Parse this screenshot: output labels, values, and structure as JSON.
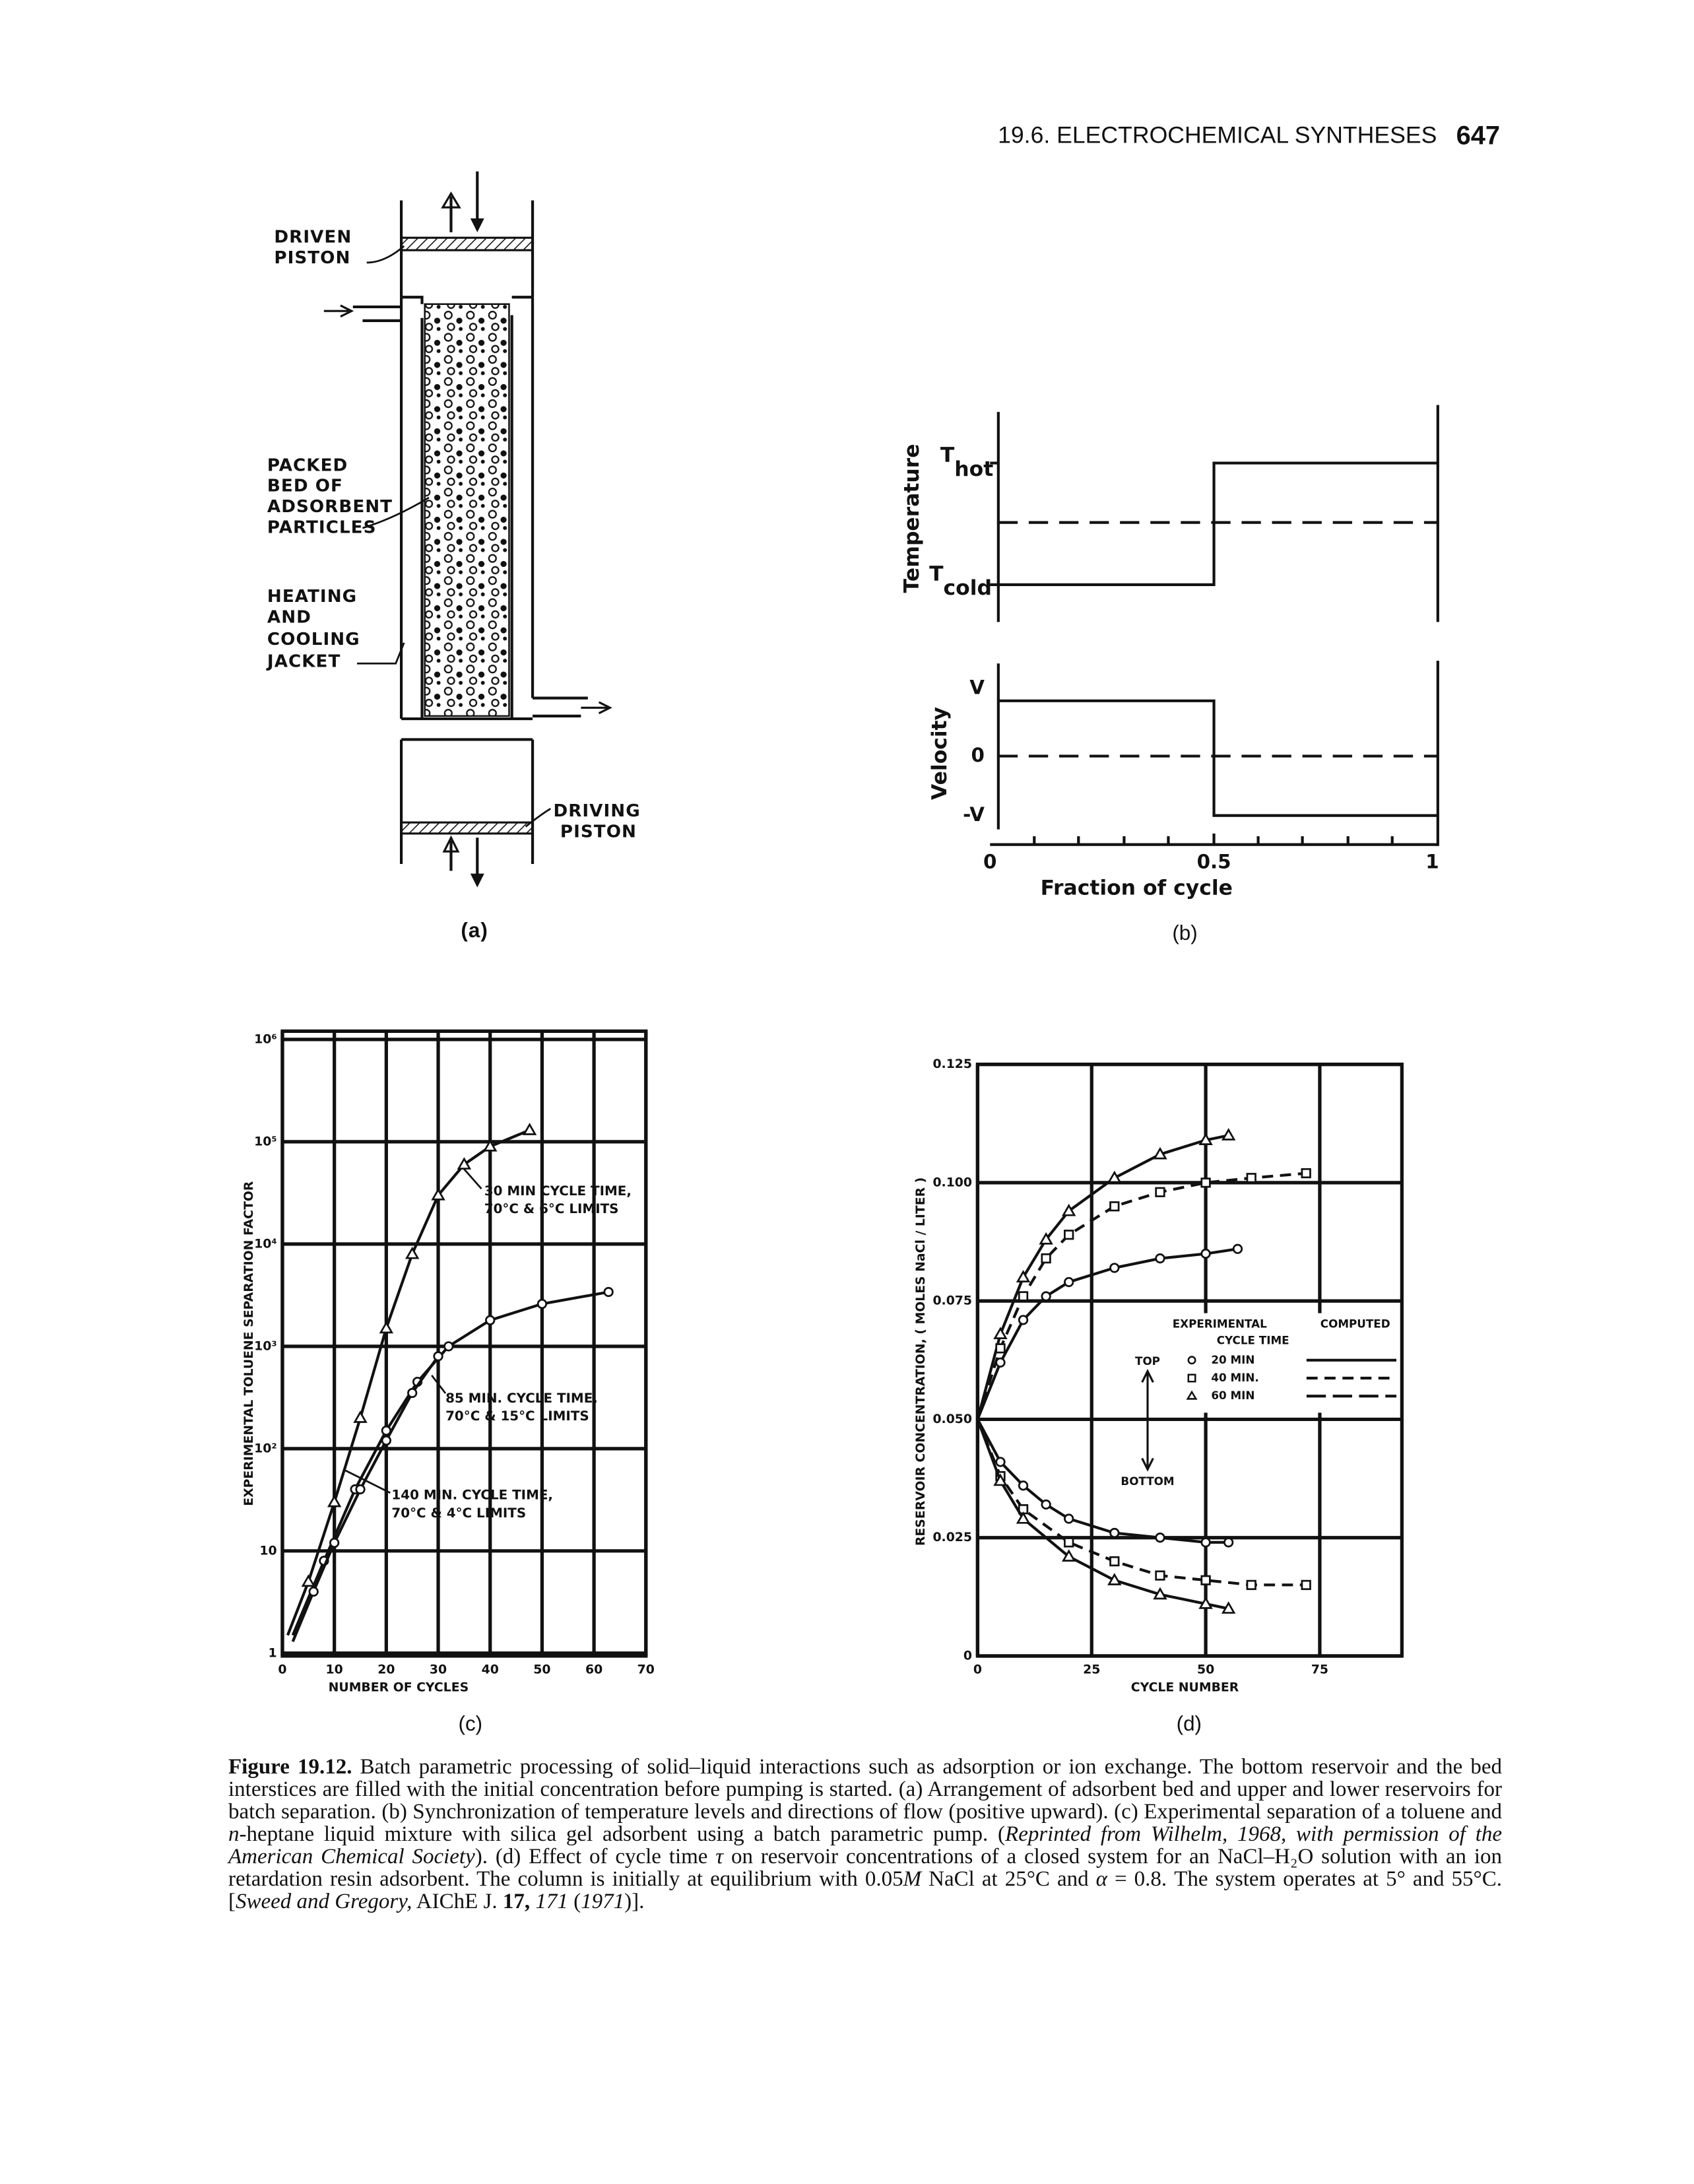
{
  "header": {
    "section": "19.6. ELECTROCHEMICAL SYNTHESES",
    "page": "647"
  },
  "panel_a": {
    "driven_piston": [
      "DRIVEN",
      "PISTON"
    ],
    "packed_bed": [
      "PACKED",
      "BED OF",
      "ADSORBENT",
      "PARTICLES"
    ],
    "jacket": [
      "HEATING",
      "AND",
      "COOLING",
      "JACKET"
    ],
    "driving_piston": [
      "DRIVING",
      "PISTON"
    ],
    "label": "(a)"
  },
  "panel_b": {
    "temperature_label": "Temperature",
    "velocity_label": "Velocity",
    "t_hot": {
      "symbol": "T",
      "subscript": "hot"
    },
    "t_cold": {
      "symbol": "T",
      "subscript": "cold"
    },
    "velocity_ticks": [
      "V",
      "0",
      "-V"
    ],
    "x_ticks": [
      "0",
      "0.5",
      "1"
    ],
    "x_label": "Fraction of cycle",
    "label": "(b)"
  },
  "chart_data": [
    {
      "type": "line",
      "y_label": "EXPERIMENTAL TOLUENE SEPARATION FACTOR",
      "x_label": "NUMBER OF CYCLES",
      "panel_label": "(c)",
      "log_y": true,
      "grid": true,
      "xlim": [
        0,
        70
      ],
      "ylim": [
        1,
        1000000
      ],
      "xticks": [
        0,
        10,
        20,
        30,
        40,
        50,
        60,
        70
      ],
      "yticks": [
        1,
        10,
        {
          "value": 100,
          "label": "10²"
        },
        {
          "value": 1000,
          "label": "10³"
        },
        {
          "value": 10000,
          "label": "10⁴"
        },
        {
          "value": 100000,
          "label": "10⁵"
        },
        {
          "value": 1000000,
          "label": "10⁶"
        }
      ],
      "series": [
        {
          "color": "#111111",
          "marker": "triangle",
          "dash": "solid",
          "x": [
            1,
            5,
            10,
            15,
            20,
            25,
            30,
            35,
            40,
            47.6
          ],
          "values": [
            1.5,
            5,
            30,
            200,
            1500,
            8000,
            30000,
            60000,
            90000,
            130000
          ]
        },
        {
          "color": "#111111",
          "marker": "circle",
          "dash": "solid",
          "x": [
            2,
            8,
            14,
            20,
            26,
            32,
            40,
            50,
            62.8
          ],
          "values": [
            1.5,
            8,
            40,
            150,
            450,
            1000,
            1800,
            2600,
            3400
          ]
        },
        {
          "color": "#111111",
          "marker": "circle",
          "dash": "solid",
          "x": [
            2,
            6,
            10,
            15,
            20,
            25,
            30
          ],
          "values": [
            1.3,
            4,
            12,
            40,
            120,
            350,
            800
          ]
        }
      ],
      "annotations": [
        [
          "30 MIN CYCLE TIME,",
          "70°C & 6°C LIMITS"
        ],
        [
          "85 MIN. CYCLE TIME,",
          "70°C & 15°C LIMITS"
        ],
        [
          "140 MIN. CYCLE TIME,",
          "70°C & 4°C LIMITS"
        ]
      ]
    },
    {
      "type": "line",
      "y_label": "RESERVOIR CONCENTRATION, ( MOLES NaCl / LITER )",
      "x_label": "CYCLE NUMBER",
      "panel_label": "(d)",
      "grid": true,
      "xlim": [
        0,
        93
      ],
      "ylim": [
        0,
        0.125
      ],
      "xticks": [
        0,
        25,
        50,
        75
      ],
      "yticks": [
        0,
        0.025,
        {
          "value": 0.05,
          "label": "0.050"
        },
        0.075,
        {
          "value": 0.1,
          "label": "0.100"
        },
        0.125
      ],
      "series": [
        {
          "color": "#111111",
          "marker": "triangle",
          "dash": "solid",
          "x": [
            0,
            5,
            10,
            15,
            20,
            30,
            40,
            50,
            55
          ],
          "values": [
            0.05,
            0.068,
            0.08,
            0.088,
            0.094,
            0.101,
            0.106,
            0.109,
            0.11
          ]
        },
        {
          "color": "#111111",
          "marker": "square",
          "dash": "dashed",
          "x": [
            0,
            5,
            10,
            15,
            20,
            30,
            40,
            50,
            60,
            72
          ],
          "values": [
            0.05,
            0.065,
            0.076,
            0.084,
            0.089,
            0.095,
            0.098,
            0.1,
            0.101,
            0.102
          ]
        },
        {
          "color": "#111111",
          "marker": "circle",
          "dash": "solid",
          "x": [
            0,
            5,
            10,
            15,
            20,
            30,
            40,
            50,
            57
          ],
          "values": [
            0.05,
            0.062,
            0.071,
            0.076,
            0.079,
            0.082,
            0.084,
            0.085,
            0.086
          ]
        },
        {
          "color": "#111111",
          "marker": "circle",
          "dash": "solid",
          "x": [
            0,
            5,
            10,
            15,
            20,
            30,
            40,
            50,
            55
          ],
          "values": [
            0.05,
            0.041,
            0.036,
            0.032,
            0.029,
            0.026,
            0.025,
            0.024,
            0.024
          ]
        },
        {
          "color": "#111111",
          "marker": "square",
          "dash": "dashed",
          "x": [
            0,
            5,
            10,
            20,
            30,
            40,
            50,
            60,
            72
          ],
          "values": [
            0.05,
            0.038,
            0.031,
            0.024,
            0.02,
            0.017,
            0.016,
            0.015,
            0.015
          ]
        },
        {
          "color": "#111111",
          "marker": "triangle",
          "dash": "solid",
          "x": [
            0,
            5,
            10,
            20,
            30,
            40,
            50,
            55
          ],
          "values": [
            0.05,
            0.037,
            0.029,
            0.021,
            0.016,
            0.013,
            0.011,
            0.01
          ]
        }
      ],
      "legend": {
        "experimental": "EXPERIMENTAL",
        "computed": "COMPUTED",
        "cycle_time": "CYCLE TIME",
        "entries": [
          {
            "label": "20 MIN",
            "marker": "circle",
            "dash": "solid"
          },
          {
            "label": "40 MIN.",
            "marker": "square",
            "dash": "dashed"
          },
          {
            "label": "60 MIN",
            "marker": "triangle",
            "dash": "longdash"
          }
        ],
        "top": "TOP",
        "bottom": "BOTTOM"
      }
    }
  ],
  "caption": {
    "parts": [
      {
        "text": "Figure 19.12.",
        "style": "bold"
      },
      {
        "text": " Batch parametric processing of solid–liquid interactions such as adsorption or ion exchange. The bottom reservoir and the bed interstices are filled with the initial concentration before pumping is started. (a) Arrangement of adsorbent bed and upper and lower reservoirs for batch separation. (b) Synchronization of temperature levels and directions of flow (positive upward). (c) Experimental separation of a toluene and "
      },
      {
        "text": "n",
        "style": "italic"
      },
      {
        "text": "-heptane liquid mixture with silica gel adsorbent using a batch parametric pump. ("
      },
      {
        "text": "Reprinted from Wilhelm, 1968, with permission of the American Chemical Society",
        "style": "italic"
      },
      {
        "text": "). (d) Effect of cycle time "
      },
      {
        "text": "τ",
        "style": "italic"
      },
      {
        "text": " on reservoir concentrations of a closed system for an NaCl–H₂O solution with an ion retardation resin adsorbent. The column is initially at equilibrium with 0.05"
      },
      {
        "text": "M",
        "style": "italic"
      },
      {
        "text": " NaCl at 25°C and "
      },
      {
        "text": "α",
        "style": "italic"
      },
      {
        "text": " = 0.8. The system operates at 5° and 55°C. ["
      },
      {
        "text": "Sweed and Gregory,",
        "style": "italic"
      },
      {
        "text": " AIChE J. "
      },
      {
        "text": "17,",
        "style": "bold"
      },
      {
        "text": " "
      },
      {
        "text": "171",
        "style": "italic"
      },
      {
        "text": " ("
      },
      {
        "text": "1971",
        "style": "italic"
      },
      {
        "text": ")]."
      }
    ]
  }
}
